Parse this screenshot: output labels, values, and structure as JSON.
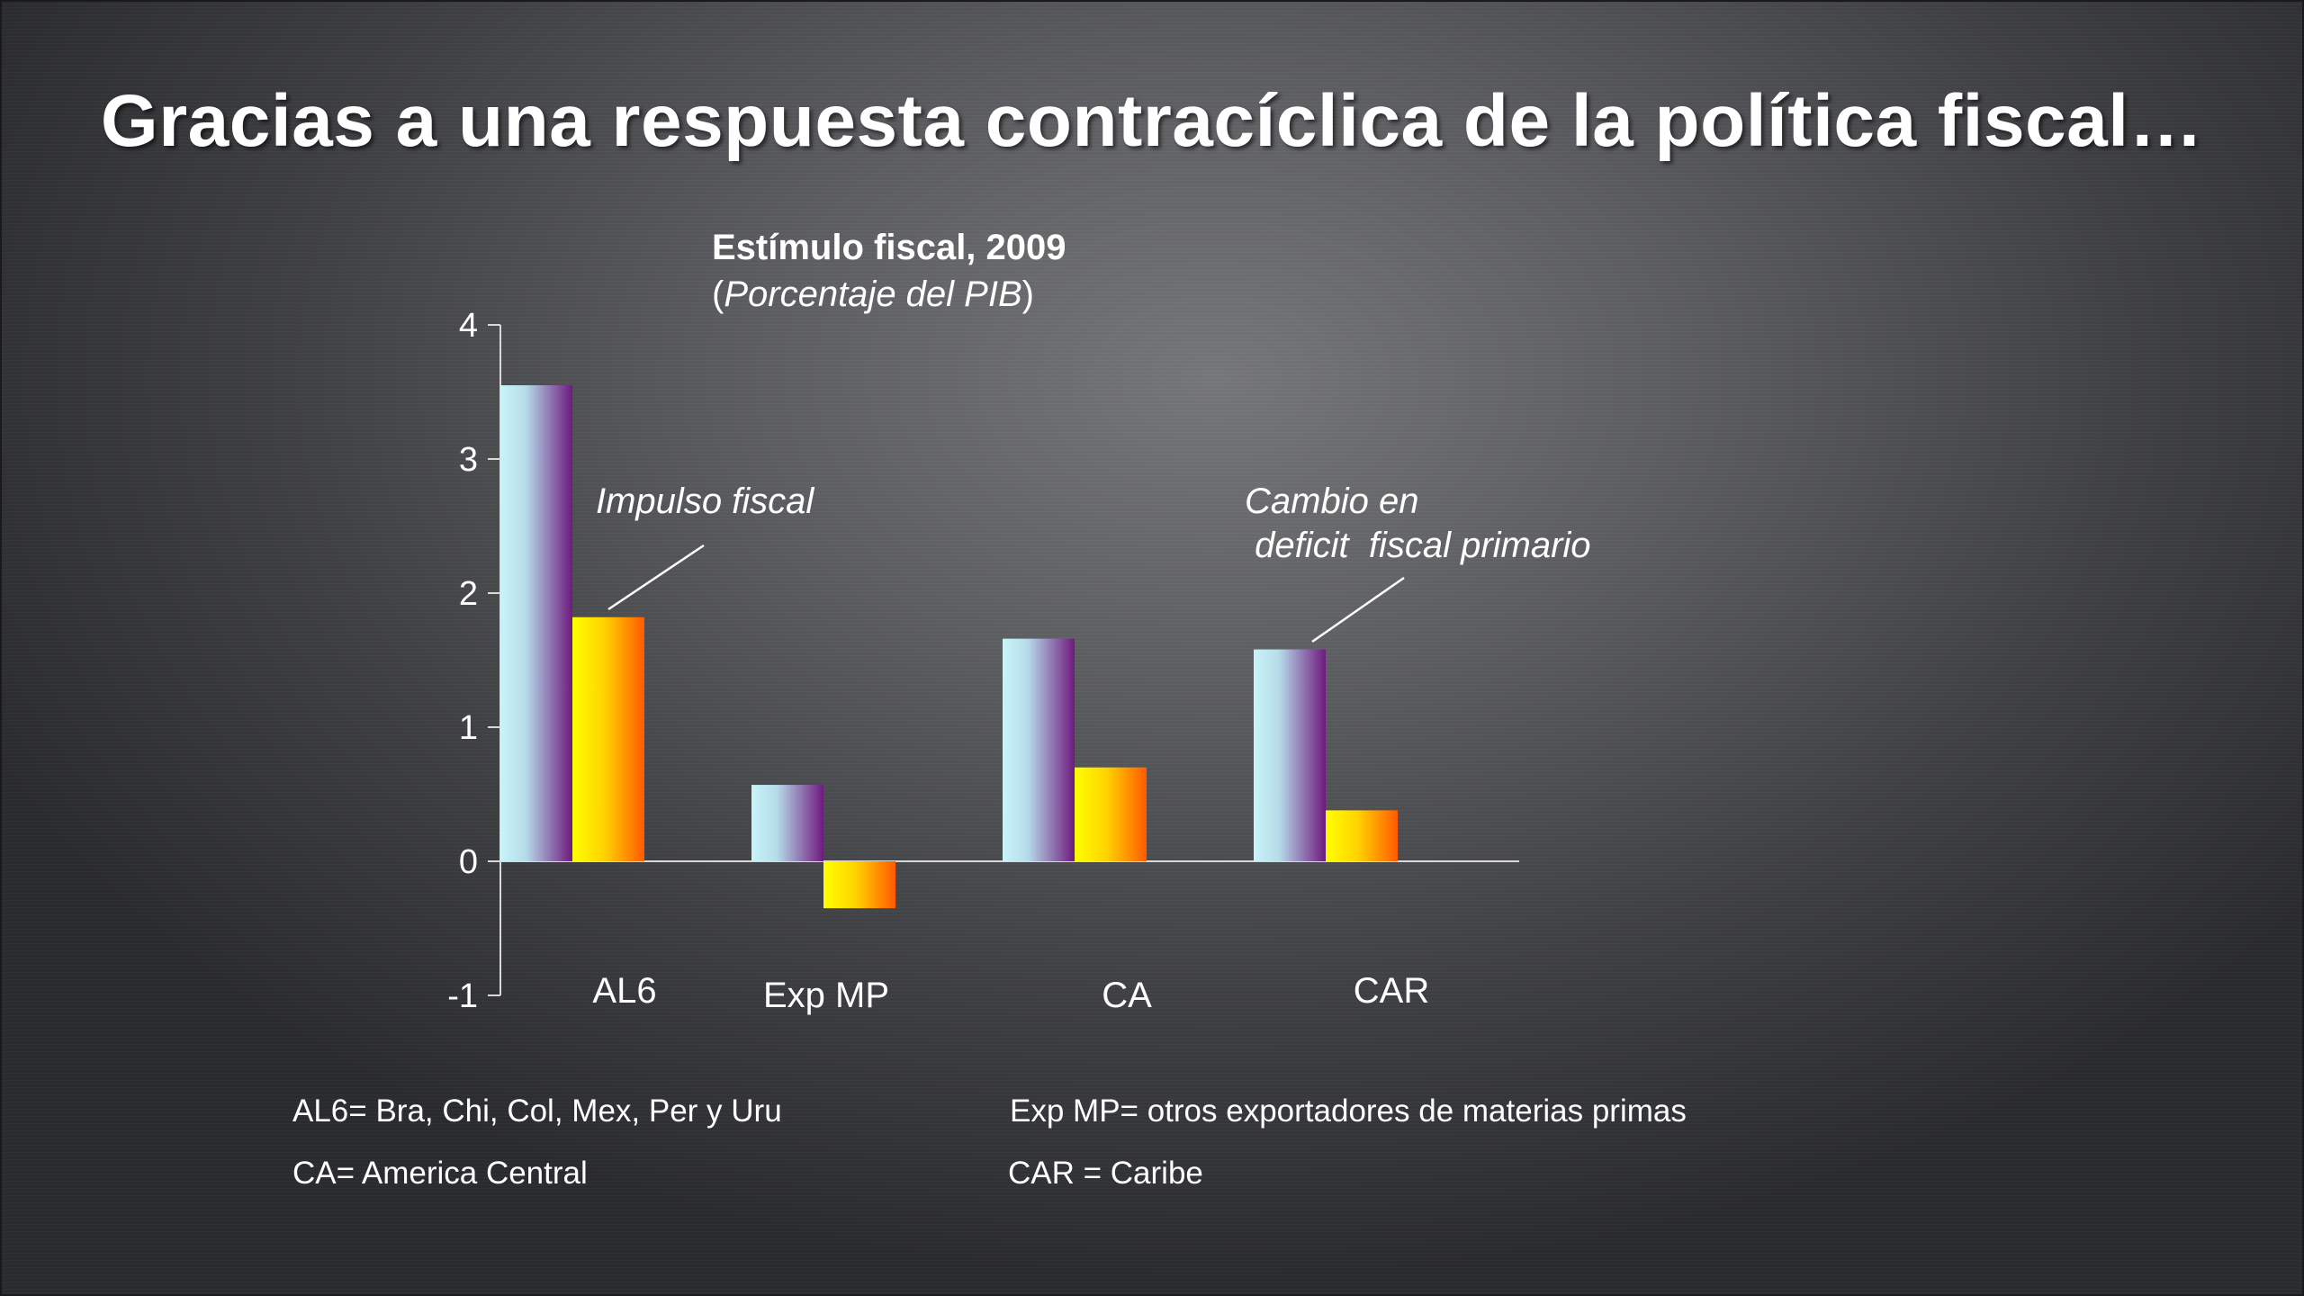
{
  "slide": {
    "title": "Gracias a una respuesta contracíclica de la política fiscal…"
  },
  "colors": {
    "series_cambio_light": "#c8f4f8",
    "series_cambio_dark": "#6e1a7e",
    "series_impulso_light": "#ffff00",
    "series_impulso_dark": "#ff5a00",
    "axis": "#d9d9d9"
  },
  "chart_data": {
    "type": "bar",
    "title": "Estímulo fiscal, 2009",
    "subtitle_open": "(",
    "subtitle_italic": "Porcentaje del PIB",
    "subtitle_close": ")",
    "categories": [
      "AL6",
      "Exp MP",
      "CA",
      "CAR"
    ],
    "series": [
      {
        "name": "Cambio en deficit fiscal primario",
        "values": [
          3.55,
          0.57,
          1.66,
          1.58
        ]
      },
      {
        "name": "Impulso fiscal",
        "values": [
          1.82,
          -0.35,
          0.7,
          0.38
        ]
      }
    ],
    "ylim": [
      -1,
      4
    ],
    "yticks": [
      -1,
      0,
      1,
      2,
      3,
      4
    ],
    "ytick_labels": [
      "-1",
      "0",
      "1",
      "2",
      "3",
      "4"
    ],
    "xlabel": "",
    "ylabel": "",
    "annotations": [
      {
        "text_lines": [
          "Impulso fiscal"
        ],
        "points_to": "Impulso fiscal, AL6"
      },
      {
        "text_lines": [
          "Cambio en",
          " deficit  fiscal primario"
        ],
        "points_to": "Cambio en deficit fiscal primario, CAR"
      }
    ]
  },
  "footnotes": {
    "al6": "AL6= Bra, Chi, Col, Mex, Per y Uru",
    "exp_mp": "Exp MP= otros exportadores  de materias  primas",
    "ca": "CA= America Central",
    "car": "CAR = Caribe"
  }
}
